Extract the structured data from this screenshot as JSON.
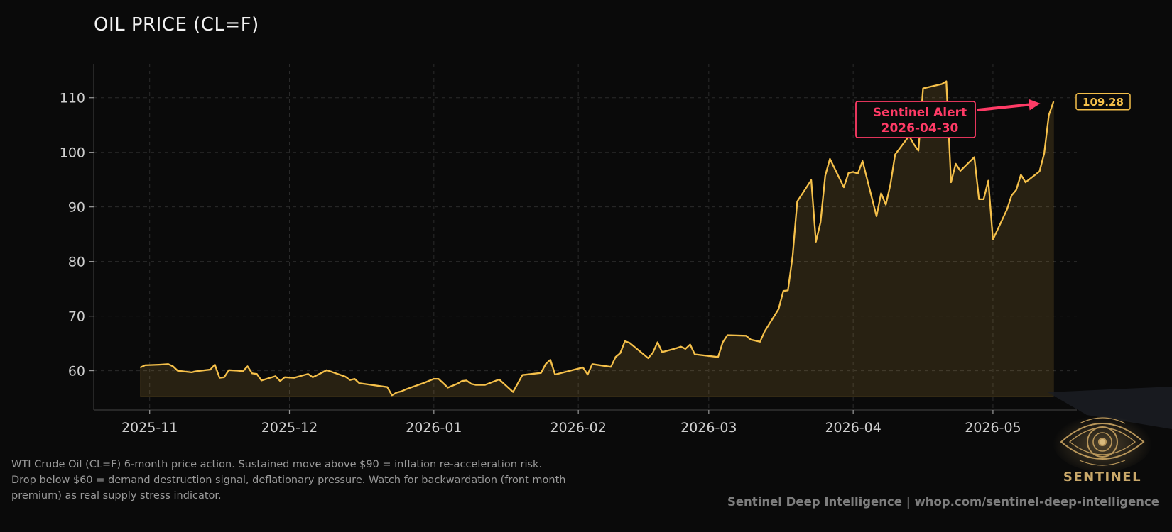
{
  "chart_data": {
    "type": "area",
    "title": "OIL PRICE (CL=F)",
    "xlabel": "",
    "ylabel": "",
    "ylim": [
      52.8,
      116.2
    ],
    "y_ticks": [
      60,
      70,
      80,
      90,
      100,
      110
    ],
    "x_ticks": [
      "2025-11",
      "2025-12",
      "2026-01",
      "2026-02",
      "2026-03",
      "2026-04",
      "2026-05"
    ],
    "xlim": [
      "2025-10-20",
      "2026-05-19"
    ],
    "grid": true,
    "series": [
      {
        "name": "",
        "color": "#f5c04a",
        "points": [
          [
            "2025-10-30",
            60.6
          ],
          [
            "2025-10-31",
            61.0
          ],
          [
            "2025-11-03",
            61.1
          ],
          [
            "2025-11-05",
            61.2
          ],
          [
            "2025-11-06",
            60.8
          ],
          [
            "2025-11-07",
            60.0
          ],
          [
            "2025-11-10",
            59.7
          ],
          [
            "2025-11-11",
            59.9
          ],
          [
            "2025-11-13",
            60.1
          ],
          [
            "2025-11-14",
            60.2
          ],
          [
            "2025-11-15",
            61.1
          ],
          [
            "2025-11-16",
            58.7
          ],
          [
            "2025-11-17",
            58.8
          ],
          [
            "2025-11-18",
            60.1
          ],
          [
            "2025-11-20",
            60.0
          ],
          [
            "2025-11-21",
            59.9
          ],
          [
            "2025-11-22",
            60.8
          ],
          [
            "2025-11-23",
            59.5
          ],
          [
            "2025-11-24",
            59.4
          ],
          [
            "2025-11-25",
            58.2
          ],
          [
            "2025-11-28",
            59.0
          ],
          [
            "2025-11-29",
            58.1
          ],
          [
            "2025-11-30",
            58.8
          ],
          [
            "2025-12-02",
            58.7
          ],
          [
            "2025-12-05",
            59.4
          ],
          [
            "2025-12-06",
            58.8
          ],
          [
            "2025-12-07",
            59.2
          ],
          [
            "2025-12-09",
            60.1
          ],
          [
            "2025-12-10",
            59.8
          ],
          [
            "2025-12-13",
            58.9
          ],
          [
            "2025-12-14",
            58.3
          ],
          [
            "2025-12-15",
            58.5
          ],
          [
            "2025-12-16",
            57.7
          ],
          [
            "2025-12-17",
            57.6
          ],
          [
            "2025-12-22",
            57.0
          ],
          [
            "2025-12-23",
            55.5
          ],
          [
            "2025-12-24",
            56.0
          ],
          [
            "2025-12-25",
            56.2
          ],
          [
            "2025-12-26",
            56.6
          ],
          [
            "2025-12-30",
            57.8
          ],
          [
            "2026-01-01",
            58.5
          ],
          [
            "2026-01-02",
            58.5
          ],
          [
            "2026-01-04",
            56.9
          ],
          [
            "2026-01-06",
            57.6
          ],
          [
            "2026-01-07",
            58.1
          ],
          [
            "2026-01-08",
            58.2
          ],
          [
            "2026-01-09",
            57.6
          ],
          [
            "2026-01-10",
            57.4
          ],
          [
            "2026-01-12",
            57.4
          ],
          [
            "2026-01-15",
            58.4
          ],
          [
            "2026-01-18",
            56.1
          ],
          [
            "2026-01-20",
            59.2
          ],
          [
            "2026-01-24",
            59.6
          ],
          [
            "2026-01-25",
            61.2
          ],
          [
            "2026-01-26",
            62.0
          ],
          [
            "2026-01-27",
            59.3
          ],
          [
            "2026-01-28",
            59.5
          ],
          [
            "2026-02-02",
            60.6
          ],
          [
            "2026-02-03",
            59.3
          ],
          [
            "2026-02-04",
            61.2
          ],
          [
            "2026-02-08",
            60.7
          ],
          [
            "2026-02-09",
            62.5
          ],
          [
            "2026-02-10",
            63.2
          ],
          [
            "2026-02-11",
            65.4
          ],
          [
            "2026-02-12",
            65.1
          ],
          [
            "2026-02-16",
            62.3
          ],
          [
            "2026-02-17",
            63.3
          ],
          [
            "2026-02-18",
            65.2
          ],
          [
            "2026-02-19",
            63.4
          ],
          [
            "2026-02-22",
            64.1
          ],
          [
            "2026-02-23",
            64.4
          ],
          [
            "2026-02-24",
            64.0
          ],
          [
            "2026-02-25",
            64.8
          ],
          [
            "2026-02-26",
            63.0
          ],
          [
            "2026-03-03",
            62.5
          ],
          [
            "2026-03-04",
            65.2
          ],
          [
            "2026-03-05",
            66.5
          ],
          [
            "2026-03-09",
            66.4
          ],
          [
            "2026-03-10",
            65.7
          ],
          [
            "2026-03-12",
            65.3
          ],
          [
            "2026-03-13",
            67.2
          ],
          [
            "2026-03-16",
            71.3
          ],
          [
            "2026-03-17",
            74.6
          ],
          [
            "2026-03-18",
            74.7
          ],
          [
            "2026-03-19",
            81.0
          ],
          [
            "2026-03-20",
            91.0
          ],
          [
            "2026-03-23",
            94.9
          ],
          [
            "2026-03-24",
            83.6
          ],
          [
            "2026-03-25",
            87.2
          ],
          [
            "2026-03-26",
            95.7
          ],
          [
            "2026-03-27",
            98.8
          ],
          [
            "2026-03-30",
            93.6
          ],
          [
            "2026-03-31",
            96.2
          ],
          [
            "2026-04-01",
            96.4
          ],
          [
            "2026-04-02",
            96.1
          ],
          [
            "2026-04-03",
            98.4
          ],
          [
            "2026-04-06",
            88.3
          ],
          [
            "2026-04-07",
            92.5
          ],
          [
            "2026-04-08",
            90.4
          ],
          [
            "2026-04-09",
            94.1
          ],
          [
            "2026-04-10",
            99.6
          ],
          [
            "2026-04-13",
            103.0
          ],
          [
            "2026-04-14",
            101.5
          ],
          [
            "2026-04-15",
            100.3
          ],
          [
            "2026-04-16",
            111.7
          ],
          [
            "2026-04-20",
            112.5
          ],
          [
            "2026-04-21",
            113.0
          ],
          [
            "2026-04-22",
            94.5
          ],
          [
            "2026-04-23",
            97.9
          ],
          [
            "2026-04-24",
            96.6
          ],
          [
            "2026-04-27",
            99.1
          ],
          [
            "2026-04-28",
            91.4
          ],
          [
            "2026-04-29",
            91.4
          ],
          [
            "2026-04-30",
            94.8
          ],
          [
            "2026-05-01",
            84.0
          ],
          [
            "2026-05-04",
            89.5
          ],
          [
            "2026-05-05",
            92.1
          ],
          [
            "2026-05-06",
            93.1
          ],
          [
            "2026-05-07",
            95.9
          ],
          [
            "2026-05-08",
            94.5
          ],
          [
            "2026-05-11",
            96.5
          ],
          [
            "2026-05-12",
            99.8
          ],
          [
            "2026-05-13",
            106.8
          ],
          [
            "2026-05-14",
            109.28
          ]
        ]
      }
    ],
    "last_value_label": "109.28",
    "annotation": {
      "line1": "Sentinel Alert",
      "line2": "2026-04-30",
      "color": "#ff3b66",
      "arrow_to": [
        "2026-05-13",
        109.2
      ]
    }
  },
  "caption": {
    "line1": "WTI Crude Oil (CL=F) 6-month price action. Sustained move above $90 = inflation re-acceleration risk.",
    "line2": "Drop below $60 = demand destruction signal, deflationary pressure. Watch for backwardation (front month",
    "line3": "premium) as real supply stress indicator."
  },
  "footer": "Sentinel Deep Intelligence  |  whop.com/sentinel-deep-intelligence",
  "brand": "SENTINEL",
  "logo_icon": "eye-icon"
}
